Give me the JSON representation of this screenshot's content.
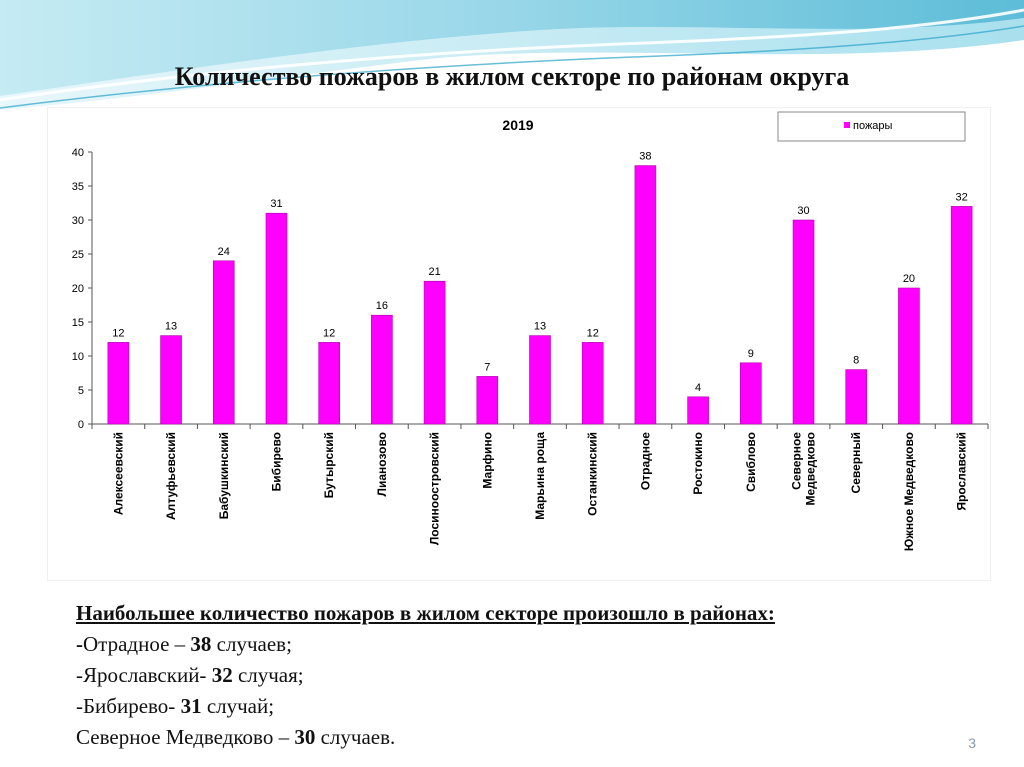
{
  "slide": {
    "title": "Количество пожаров в жилом секторе по районам округа",
    "page_number": "3"
  },
  "chart_data": {
    "type": "bar",
    "title": "2019",
    "xlabel": "",
    "ylabel": "",
    "ylim": [
      0,
      40
    ],
    "yticks": [
      "0",
      "5",
      "10",
      "15",
      "20",
      "25",
      "30",
      "35",
      "40"
    ],
    "legend_position": "top-right",
    "grid": false,
    "bar_color": "#ff00ff",
    "categories": [
      "Алексеевский",
      "Алтуфьевский",
      "Бабушкинский",
      "Бибирево",
      "Бутырский",
      "Лианозово",
      "Лосиноостровский",
      "Марфино",
      "Марьина роща",
      "Останкинский",
      "Отрадное",
      "Ростокино",
      "Свиблово",
      "Северное Медведково",
      "Северный",
      "Южное Медведково",
      "Ярославский"
    ],
    "series": [
      {
        "name": "пожары",
        "values": [
          12,
          13,
          24,
          31,
          12,
          16,
          21,
          7,
          13,
          12,
          38,
          4,
          9,
          30,
          8,
          20,
          32
        ]
      }
    ]
  },
  "summary": {
    "heading": "Наибольшее количество пожаров в жилом секторе произошло в районах:",
    "items": [
      {
        "prefix": "-",
        "name": "Отрадное – ",
        "count": "38",
        "suffix": " случаев;"
      },
      {
        "prefix": "",
        "name": "-Ярославский- ",
        "count": "32",
        "suffix": " случая;"
      },
      {
        "prefix": "",
        "name": "-Бибирево- ",
        "count": "31",
        "suffix": " случай;"
      },
      {
        "prefix": "",
        "name": "Северное Медведково – ",
        "count": "30",
        "suffix": " случаев."
      }
    ]
  }
}
